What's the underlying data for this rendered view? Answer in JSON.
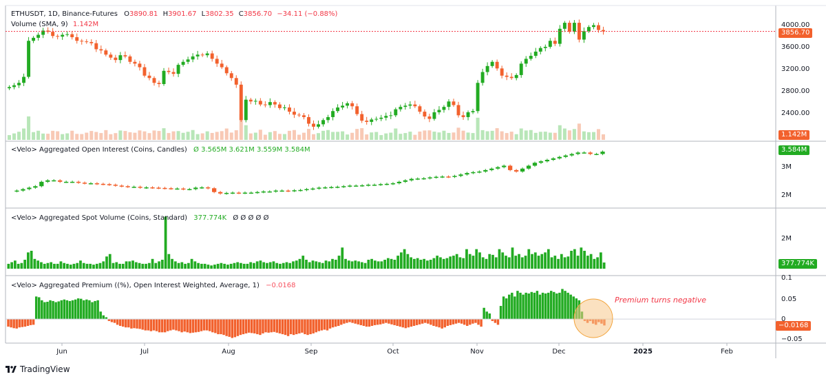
{
  "colors": {
    "up": "#22ab22",
    "down": "#f2612d",
    "grid": "#e0e3eb",
    "axis_text": "#131722",
    "price_line": "#f23645",
    "circle_fill": "#f7c98d",
    "circle_stroke": "#f2a33a",
    "annotation": "#f23645"
  },
  "header": {
    "symbol": "ETHUSDT, 1D, Binance-Futures",
    "o_label": "O",
    "o_value": "3890.81",
    "h_label": "H",
    "h_value": "3901.67",
    "l_label": "L",
    "l_value": "3802.35",
    "c_label": "C",
    "c_value": "3856.70",
    "change": "−34.11 (−0.88%)",
    "volume_label": "Volume (SMA, 9)",
    "volume_value": "1.142M"
  },
  "panes": {
    "price": {
      "ticks": [
        "4000.00",
        "3600.00",
        "3200.00",
        "2800.00",
        "2400.00"
      ],
      "last_price_tag": "3856.70",
      "volume_tag": "1.142M"
    },
    "open_interest": {
      "title": "<Velo> Aggregated Open Interest (Coins, Candles)",
      "values": "Ø  3.565M  3.621M  3.559M  3.584M",
      "ticks": [
        "3M",
        "2M"
      ],
      "tag": "3.584M"
    },
    "spot_volume": {
      "title": "<Velo> Aggregated Spot Volume (Coins, Standard)",
      "value": "377.774K",
      "nulls": "Ø  Ø  Ø  Ø  Ø",
      "ticks": [
        "2M"
      ],
      "tag": "377.774K"
    },
    "premium": {
      "title": "<Velo> Aggregated Premium ((%), Open Interest Weighted, Average, 1)",
      "value": "−0.0168",
      "ticks": [
        "0.1",
        "0.05",
        "0",
        "−0.05"
      ],
      "tag": "−0.0168",
      "annotation": "Premium turns negative"
    }
  },
  "x_axis": {
    "labels": [
      "Jun",
      "Jul",
      "Aug",
      "Sep",
      "Oct",
      "Nov",
      "Dec",
      "2025",
      "Feb"
    ]
  },
  "brand": "TradingView",
  "chart_data": [
    {
      "type": "candlestick",
      "name": "ETHUSDT, 1D, Binance-Futures",
      "x_start": "2024-05-20",
      "x_end": "2024-12-18",
      "close_series": [
        2930,
        2960,
        3000,
        3100,
        3700,
        3750,
        3800,
        3870,
        3850,
        3780,
        3770,
        3800,
        3810,
        3760,
        3700,
        3690,
        3680,
        3660,
        3560,
        3540,
        3470,
        3420,
        3380,
        3460,
        3440,
        3350,
        3320,
        3260,
        3120,
        3080,
        3000,
        2980,
        3200,
        3180,
        3150,
        3300,
        3350,
        3390,
        3440,
        3470,
        3460,
        3490,
        3400,
        3320,
        3260,
        3160,
        3080,
        2970,
        2380,
        2720,
        2690,
        2700,
        2640,
        2630,
        2680,
        2640,
        2580,
        2590,
        2520,
        2470,
        2460,
        2430,
        2320,
        2270,
        2310,
        2380,
        2430,
        2530,
        2590,
        2620,
        2660,
        2610,
        2480,
        2370,
        2350,
        2390,
        2400,
        2420,
        2450,
        2460,
        2560,
        2600,
        2620,
        2640,
        2610,
        2520,
        2440,
        2400,
        2510,
        2550,
        2600,
        2690,
        2630,
        2460,
        2430,
        2510,
        2530,
        3000,
        3180,
        3280,
        3350,
        3240,
        3120,
        3100,
        3080,
        3130,
        3320,
        3400,
        3450,
        3520,
        3580,
        3600,
        3700,
        3650,
        3900,
        4000,
        3850,
        4000,
        3720,
        3860,
        3930,
        3960,
        3880,
        3857
      ],
      "ylim": [
        2200,
        4150
      ]
    },
    {
      "type": "candlestick",
      "name": "<Velo> Aggregated Open Interest (Coins, Candles)",
      "x_start": "2024-05-20",
      "x_end": "2024-12-18",
      "close_series": [
        2.25,
        2.3,
        2.35,
        2.4,
        2.55,
        2.6,
        2.6,
        2.55,
        2.55,
        2.55,
        2.52,
        2.5,
        2.5,
        2.48,
        2.47,
        2.45,
        2.42,
        2.4,
        2.38,
        2.38,
        2.35,
        2.36,
        2.35,
        2.34,
        2.33,
        2.32,
        2.32,
        2.3,
        2.3,
        2.35,
        2.36,
        2.33,
        2.2,
        2.15,
        2.17,
        2.18,
        2.17,
        2.18,
        2.18,
        2.2,
        2.22,
        2.22,
        2.25,
        2.25,
        2.24,
        2.26,
        2.27,
        2.3,
        2.32,
        2.35,
        2.36,
        2.37,
        2.38,
        2.4,
        2.42,
        2.42,
        2.43,
        2.45,
        2.45,
        2.47,
        2.48,
        2.5,
        2.55,
        2.6,
        2.65,
        2.66,
        2.67,
        2.7,
        2.72,
        2.73,
        2.72,
        2.75,
        2.8,
        2.85,
        2.88,
        2.9,
        2.95,
        3.0,
        3.05,
        3.1,
        2.95,
        2.9,
        3.0,
        3.1,
        3.2,
        3.25,
        3.3,
        3.35,
        3.4,
        3.45,
        3.5,
        3.55,
        3.55,
        3.5,
        3.5,
        3.58
      ],
      "ylim": [
        1.7,
        3.7
      ],
      "unit": "M"
    },
    {
      "type": "bar",
      "name": "<Velo> Aggregated Spot Volume (Coins, Standard)",
      "values_m": [
        0.3,
        0.4,
        0.5,
        0.3,
        0.35,
        0.55,
        1.0,
        1.1,
        0.6,
        0.5,
        0.4,
        0.3,
        0.35,
        0.4,
        0.3,
        0.3,
        0.45,
        0.35,
        0.3,
        0.25,
        0.3,
        0.35,
        0.5,
        0.35,
        0.3,
        0.3,
        0.25,
        0.3,
        0.35,
        0.45,
        0.75,
        0.9,
        0.35,
        0.4,
        0.3,
        0.3,
        0.45,
        0.45,
        0.5,
        0.4,
        0.35,
        0.3,
        0.3,
        0.35,
        0.6,
        0.35,
        0.45,
        0.55,
        3.2,
        0.9,
        0.6,
        0.45,
        0.35,
        0.4,
        0.3,
        0.35,
        0.6,
        0.45,
        0.35,
        0.3,
        0.3,
        0.25,
        0.2,
        0.25,
        0.3,
        0.35,
        0.3,
        0.25,
        0.3,
        0.35,
        0.4,
        0.35,
        0.3,
        0.3,
        0.4,
        0.35,
        0.45,
        0.5,
        0.4,
        0.35,
        0.4,
        0.45,
        0.35,
        0.3,
        0.35,
        0.4,
        0.35,
        0.45,
        0.5,
        0.6,
        0.8,
        0.55,
        0.4,
        0.5,
        0.45,
        0.4,
        0.35,
        0.5,
        0.45,
        0.6,
        0.55,
        0.8,
        1.3,
        0.6,
        0.5,
        0.45,
        0.5,
        0.45,
        0.4,
        0.35,
        0.55,
        0.6,
        0.5,
        0.45,
        0.45,
        0.55,
        0.65,
        0.6,
        0.55,
        0.8,
        1.0,
        1.2,
        0.9,
        0.7,
        0.6,
        0.65,
        0.55,
        0.6,
        0.5,
        0.55,
        0.65,
        0.8,
        0.7,
        0.6,
        0.65,
        0.75,
        0.8,
        0.9,
        0.7,
        0.65,
        1.2,
        0.9,
        0.8,
        1.2,
        1.0,
        0.7,
        0.6,
        0.9,
        0.85,
        0.7,
        1.2,
        1.0,
        0.8,
        0.7,
        1.3,
        0.8,
        0.9,
        0.7,
        0.8,
        1.2,
        0.9,
        1.0,
        0.8,
        0.9,
        1.0,
        1.2,
        0.7,
        0.8,
        0.6,
        0.9,
        0.7,
        0.75,
        1.1,
        1.2,
        0.8,
        1.3,
        1.1,
        0.8,
        0.9,
        0.6,
        0.7,
        1.0,
        0.38
      ],
      "ylim": [
        0,
        3.3
      ],
      "unit": "M"
    },
    {
      "type": "bar",
      "name": "<Velo> Aggregated Premium ((%), Open Interest Weighted, Average, 1)",
      "values": [
        -0.02,
        -0.022,
        -0.024,
        -0.025,
        -0.022,
        -0.021,
        -0.02,
        -0.018,
        -0.016,
        -0.015,
        0.06,
        0.058,
        0.05,
        0.045,
        0.046,
        0.05,
        0.048,
        0.045,
        0.047,
        0.05,
        0.052,
        0.05,
        0.048,
        0.05,
        0.052,
        0.055,
        0.054,
        0.05,
        0.052,
        0.05,
        0.045,
        0.048,
        0.05,
        0.02,
        0.01,
        0.005,
        -0.005,
        -0.008,
        -0.01,
        -0.015,
        -0.018,
        -0.02,
        -0.022,
        -0.022,
        -0.025,
        -0.024,
        -0.025,
        -0.026,
        -0.028,
        -0.03,
        -0.03,
        -0.032,
        -0.03,
        -0.032,
        -0.035,
        -0.035,
        -0.035,
        -0.032,
        -0.03,
        -0.028,
        -0.03,
        -0.032,
        -0.035,
        -0.033,
        -0.035,
        -0.037,
        -0.036,
        -0.035,
        -0.034,
        -0.032,
        -0.03,
        -0.03,
        -0.032,
        -0.035,
        -0.037,
        -0.04,
        -0.04,
        -0.042,
        -0.045,
        -0.047,
        -0.05,
        -0.048,
        -0.045,
        -0.042,
        -0.04,
        -0.038,
        -0.036,
        -0.037,
        -0.038,
        -0.04,
        -0.042,
        -0.038,
        -0.035,
        -0.036,
        -0.035,
        -0.034,
        -0.036,
        -0.038,
        -0.04,
        -0.042,
        -0.045,
        -0.04,
        -0.042,
        -0.04,
        -0.038,
        -0.036,
        -0.04,
        -0.042,
        -0.04,
        -0.038,
        -0.035,
        -0.032,
        -0.03,
        -0.028,
        -0.03,
        -0.025,
        -0.022,
        -0.02,
        -0.018,
        -0.015,
        -0.012,
        -0.01,
        -0.008,
        -0.01,
        -0.012,
        -0.014,
        -0.016,
        -0.018,
        -0.02,
        -0.02,
        -0.018,
        -0.016,
        -0.015,
        -0.014,
        -0.012,
        -0.01,
        -0.012,
        -0.014,
        -0.016,
        -0.018,
        -0.02,
        -0.022,
        -0.024,
        -0.022,
        -0.02,
        -0.018,
        -0.016,
        -0.014,
        -0.012,
        -0.01,
        -0.012,
        -0.015,
        -0.018,
        -0.02,
        -0.022,
        -0.025,
        -0.022,
        -0.018,
        -0.016,
        -0.014,
        -0.012,
        -0.01,
        -0.012,
        -0.015,
        -0.018,
        -0.015,
        -0.012,
        -0.01,
        -0.015,
        -0.02,
        0.03,
        0.02,
        0.015,
        -0.005,
        -0.01,
        -0.015,
        0.035,
        0.06,
        0.055,
        0.065,
        0.07,
        0.06,
        0.075,
        0.07,
        0.065,
        0.07,
        0.068,
        0.072,
        0.07,
        0.075,
        0.065,
        0.07,
        0.068,
        0.07,
        0.075,
        0.072,
        0.068,
        0.07,
        0.08,
        0.075,
        0.07,
        0.065,
        0.06,
        0.055,
        0.05,
        0.02,
        -0.005,
        -0.01,
        -0.005,
        -0.012,
        -0.015,
        -0.008,
        -0.012,
        -0.0168
      ],
      "ylim": [
        -0.06,
        0.11
      ],
      "unit": "%"
    }
  ]
}
